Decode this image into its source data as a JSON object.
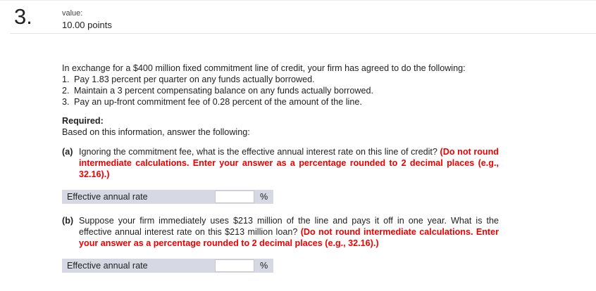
{
  "question": {
    "number": "3.",
    "value_label": "value:",
    "points": "10.00 points"
  },
  "intro": "In exchange for a $400 million fixed commitment line of credit, your firm has agreed to do the following:",
  "items": [
    {
      "n": "1.",
      "text": "Pay 1.83 percent per quarter on any funds actually borrowed."
    },
    {
      "n": "2.",
      "text": "Maintain a 3 percent compensating balance on any funds actually borrowed."
    },
    {
      "n": "3.",
      "text": "Pay an up-front commitment fee of 0.28 percent of the amount of the line."
    }
  ],
  "required_label": "Required:",
  "required_text": "Based on this information, answer the following:",
  "part_a": {
    "label": "(a)",
    "text": "Ignoring the commitment fee, what is the effective annual interest rate on this line of credit?",
    "instruction": "(Do not round intermediate calculations. Enter your answer as a percentage rounded to 2 decimal places (e.g., 32.16).)"
  },
  "answer_a": {
    "label": "Effective annual rate",
    "value": "",
    "unit": "%"
  },
  "part_b": {
    "label": "(b)",
    "text": "Suppose your firm immediately uses $213 million of the line and pays it off in one year. What is the effective annual interest rate on this $213 million loan?",
    "instruction": "(Do not round intermediate calculations. Enter your answer as a percentage rounded to 2 decimal places (e.g., 32.16).)"
  },
  "answer_b": {
    "label": "Effective annual rate",
    "value": "",
    "unit": "%"
  }
}
